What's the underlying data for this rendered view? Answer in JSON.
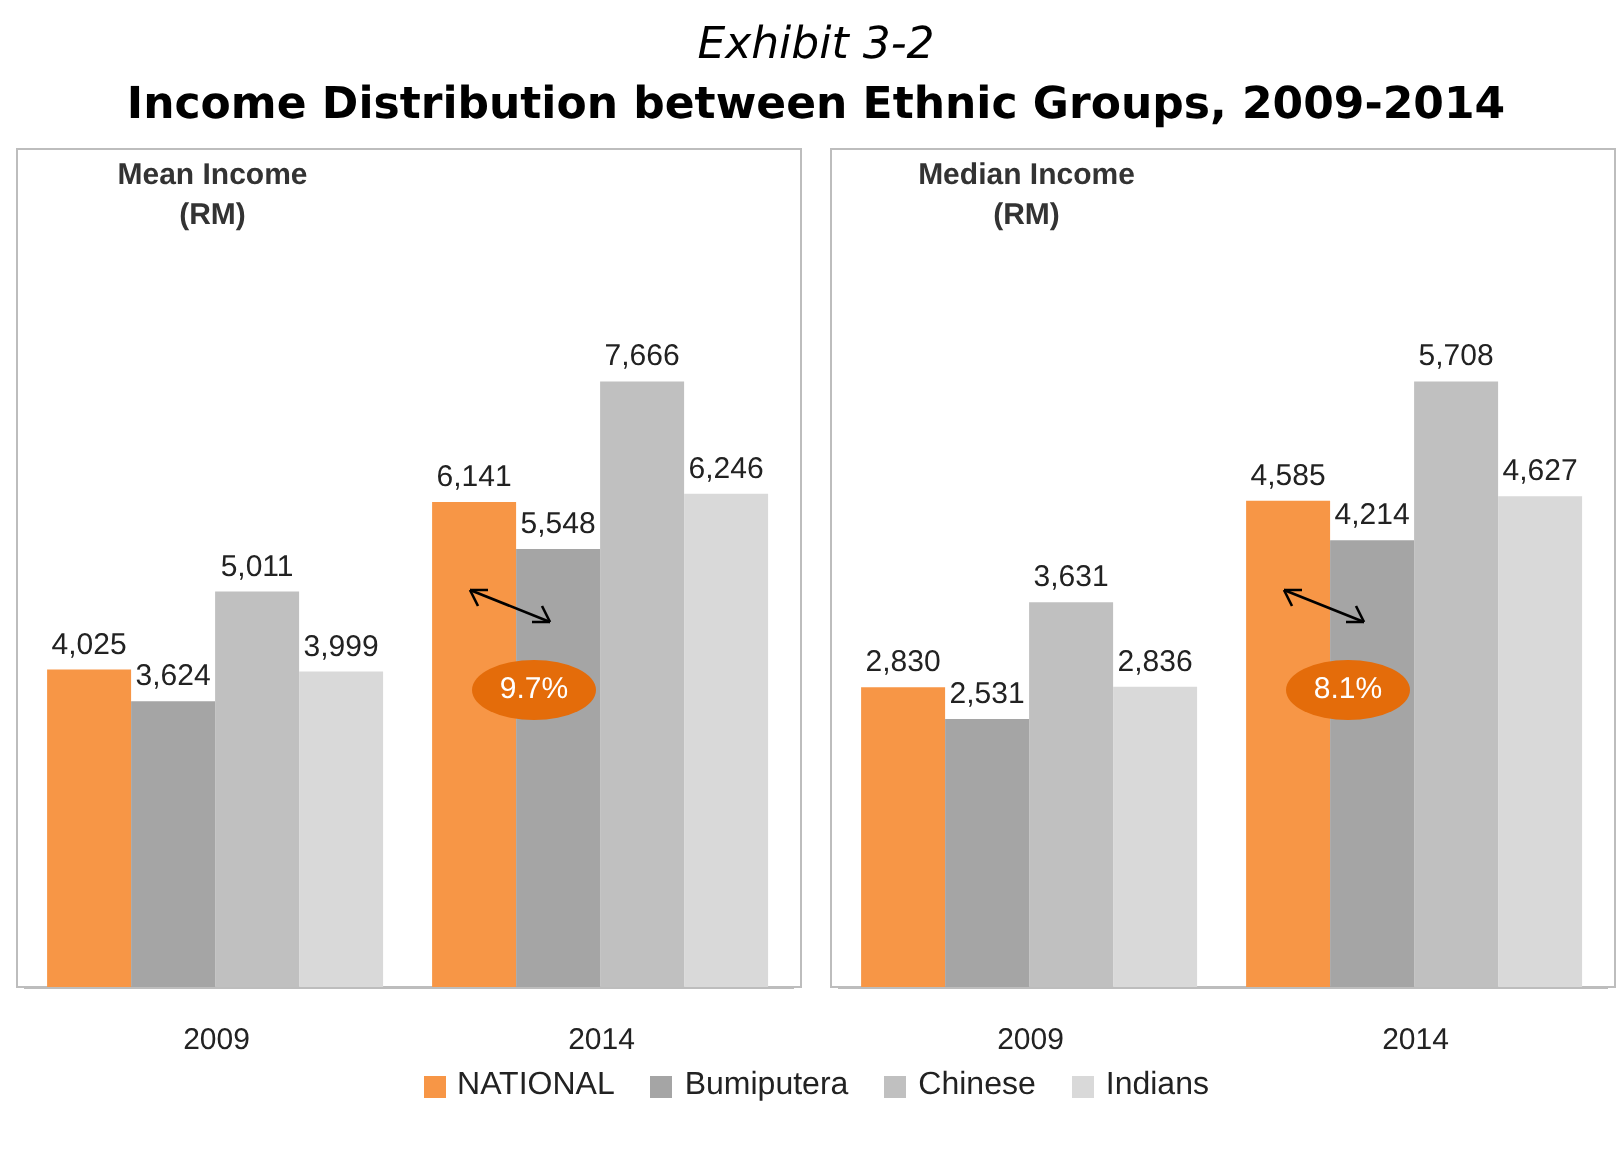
{
  "chart_data": [
    {
      "type": "other",
      "title": "Exhibit 3-2",
      "subtitle": "Income Distribution between Ethnic Groups, 2009-2014"
    },
    {
      "type": "bar",
      "title": "Mean Income\n(RM)",
      "categories": [
        "2009",
        "2014"
      ],
      "series": [
        {
          "name": "NATIONAL",
          "color": "#f79646",
          "values": [
            4025,
            6141
          ],
          "value_labels": [
            "4,025",
            "6,141"
          ]
        },
        {
          "name": "Bumiputera",
          "color": "#a5a5a5",
          "values": [
            3624,
            5548
          ],
          "value_labels": [
            "3,624",
            "5,548"
          ]
        },
        {
          "name": "Chinese",
          "color": "#c0c0c0",
          "values": [
            5011,
            7666
          ],
          "value_labels": [
            "5,011",
            "7,666"
          ]
        },
        {
          "name": "Indians",
          "color": "#d9d9d9",
          "values": [
            3999,
            6246
          ],
          "value_labels": [
            "3,999",
            "6,246"
          ]
        }
      ],
      "legend": "bottom",
      "tick_labels": "x",
      "annotations": [
        "9.7%"
      ]
    },
    {
      "type": "bar",
      "title": "Median Income\n(RM)",
      "categories": [
        "2009",
        "2014"
      ],
      "series": [
        {
          "color": "#f79646",
          "values": [
            2830,
            4585
          ],
          "value_labels": [
            "2,830",
            "4,585"
          ]
        },
        {
          "color": "#a5a5a5",
          "values": [
            2531,
            4214
          ],
          "value_labels": [
            "2,531",
            "4,214"
          ]
        },
        {
          "color": "#c0c0c0",
          "values": [
            3631,
            5708
          ],
          "value_labels": [
            "3,631",
            "5,708"
          ]
        },
        {
          "color": "#d9d9d9",
          "values": [
            2836,
            4627
          ],
          "value_labels": [
            "2,836",
            "4,627"
          ]
        }
      ],
      "tick_labels": "x",
      "annotations": [
        "8.1%"
      ]
    }
  ]
}
